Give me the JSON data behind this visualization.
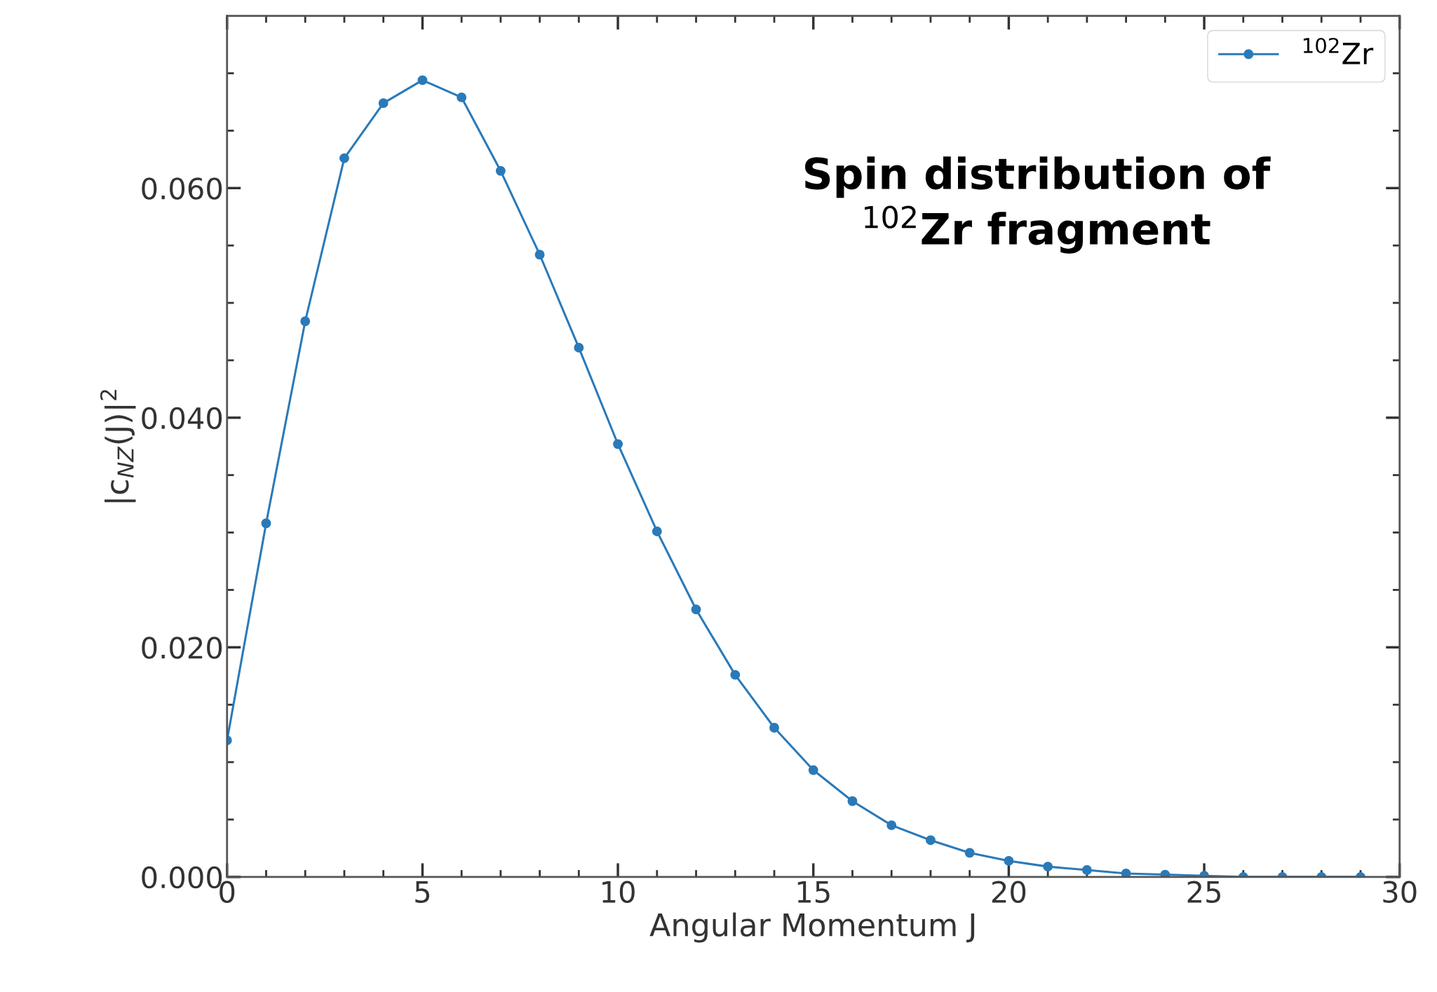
{
  "chart_data": {
    "type": "line",
    "x": [
      0,
      1,
      2,
      3,
      4,
      5,
      6,
      7,
      8,
      9,
      10,
      11,
      12,
      13,
      14,
      15,
      16,
      17,
      18,
      19,
      20,
      21,
      22,
      23,
      24,
      25,
      26,
      27,
      28,
      29
    ],
    "series": [
      {
        "name": "$^{102}$Zr",
        "color": "#2a7ab9",
        "values": [
          0.0119,
          0.0308,
          0.0484,
          0.0626,
          0.0674,
          0.0694,
          0.0679,
          0.0615,
          0.0542,
          0.0461,
          0.0377,
          0.0301,
          0.0233,
          0.0176,
          0.013,
          0.0093,
          0.0066,
          0.0045,
          0.0032,
          0.0021,
          0.0014,
          0.0009,
          0.0006,
          0.0003,
          0.0002,
          0.0001,
          0,
          0,
          0,
          0
        ]
      }
    ],
    "xlabel": "Angular Momentum J",
    "ylabel": "|c$_{NZ}$(J)|$^{2}$",
    "annotations": [
      "Spin distribution of\n$^{102}$Zr fragment"
    ],
    "xlim": [
      0,
      30
    ],
    "ylim": [
      0,
      0.075
    ],
    "xticks": [
      0,
      {
        "value": 1,
        "label": null
      },
      {
        "value": 2,
        "label": null
      },
      {
        "value": 3,
        "label": null
      },
      {
        "value": 4,
        "label": null
      },
      5,
      {
        "value": 6,
        "label": null
      },
      {
        "value": 7,
        "label": null
      },
      {
        "value": 8,
        "label": null
      },
      {
        "value": 9,
        "label": null
      },
      10,
      {
        "value": 11,
        "label": null
      },
      {
        "value": 12,
        "label": null
      },
      {
        "value": 13,
        "label": null
      },
      {
        "value": 14,
        "label": null
      },
      15,
      {
        "value": 16,
        "label": null
      },
      {
        "value": 17,
        "label": null
      },
      {
        "value": 18,
        "label": null
      },
      {
        "value": 19,
        "label": null
      },
      20,
      {
        "value": 21,
        "label": null
      },
      {
        "value": 22,
        "label": null
      },
      {
        "value": 23,
        "label": null
      },
      {
        "value": 24,
        "label": null
      },
      25,
      {
        "value": 26,
        "label": null
      },
      {
        "value": 27,
        "label": null
      },
      {
        "value": 28,
        "label": null
      },
      {
        "value": 29,
        "label": null
      },
      30
    ],
    "yticks": [
      {
        "value": 0,
        "label": "0.000"
      },
      {
        "value": 0.005,
        "label": null
      },
      {
        "value": 0.01,
        "label": null
      },
      {
        "value": 0.015,
        "label": null
      },
      {
        "value": 0.02,
        "label": "0.020"
      },
      {
        "value": 0.025,
        "label": null
      },
      {
        "value": 0.03,
        "label": null
      },
      {
        "value": 0.035,
        "label": null
      },
      {
        "value": 0.04,
        "label": "0.040"
      },
      {
        "value": 0.045,
        "label": null
      },
      {
        "value": 0.05,
        "label": null
      },
      {
        "value": 0.055,
        "label": null
      },
      {
        "value": 0.06,
        "label": "0.060"
      },
      {
        "value": 0.065,
        "label": null
      },
      {
        "value": 0.07,
        "label": null
      }
    ],
    "grid": false,
    "legend": "top right",
    "marker": "circle",
    "line_style": "solid"
  }
}
